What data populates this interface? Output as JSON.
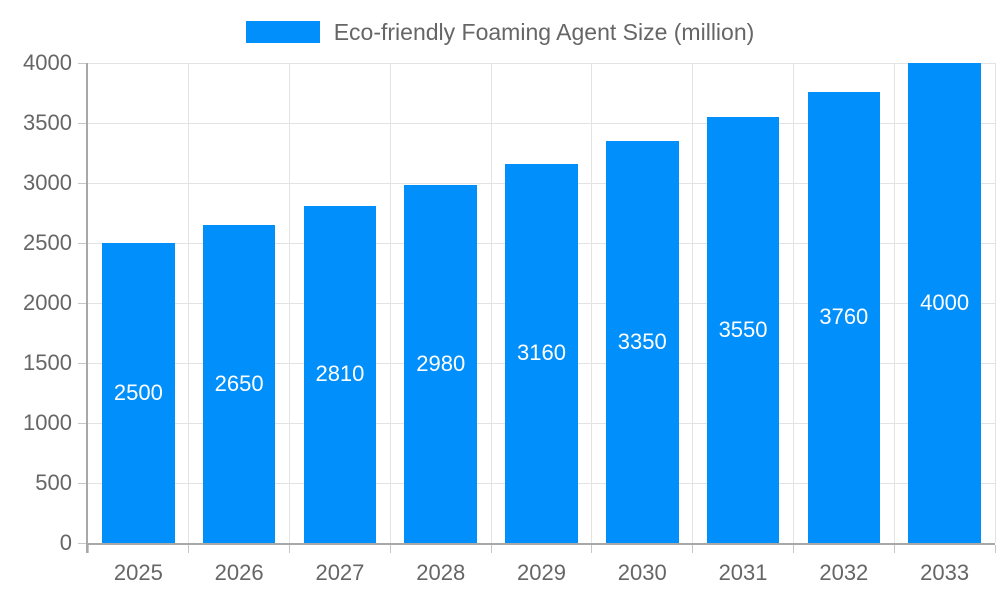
{
  "legend": {
    "label": "Eco-friendly Foaming Agent Size (million)"
  },
  "chart_data": {
    "type": "bar",
    "title": "Eco-friendly Foaming Agent Size (million)",
    "series_name": "Eco-friendly Foaming Agent Size (million)",
    "categories": [
      "2025",
      "2026",
      "2027",
      "2028",
      "2029",
      "2030",
      "2031",
      "2032",
      "2033"
    ],
    "values": [
      2500,
      2650,
      2810,
      2980,
      3160,
      3350,
      3550,
      3760,
      4000
    ],
    "value_labels": [
      "2500",
      "2650",
      "2810",
      "2980",
      "3160",
      "3350",
      "3550",
      "3760",
      "4000"
    ],
    "xlabel": "",
    "ylabel": "",
    "ylim": [
      0,
      4000
    ],
    "yticks": [
      0,
      500,
      1000,
      1500,
      2000,
      2500,
      3000,
      3500,
      4000
    ],
    "grid": true,
    "legend_position": "top",
    "colors": {
      "bar": "#008FFB",
      "value_label": "#ffffff",
      "axis_text": "#666666",
      "gridline": "#e3e3e3",
      "axis_line": "#a8a8a8"
    }
  }
}
